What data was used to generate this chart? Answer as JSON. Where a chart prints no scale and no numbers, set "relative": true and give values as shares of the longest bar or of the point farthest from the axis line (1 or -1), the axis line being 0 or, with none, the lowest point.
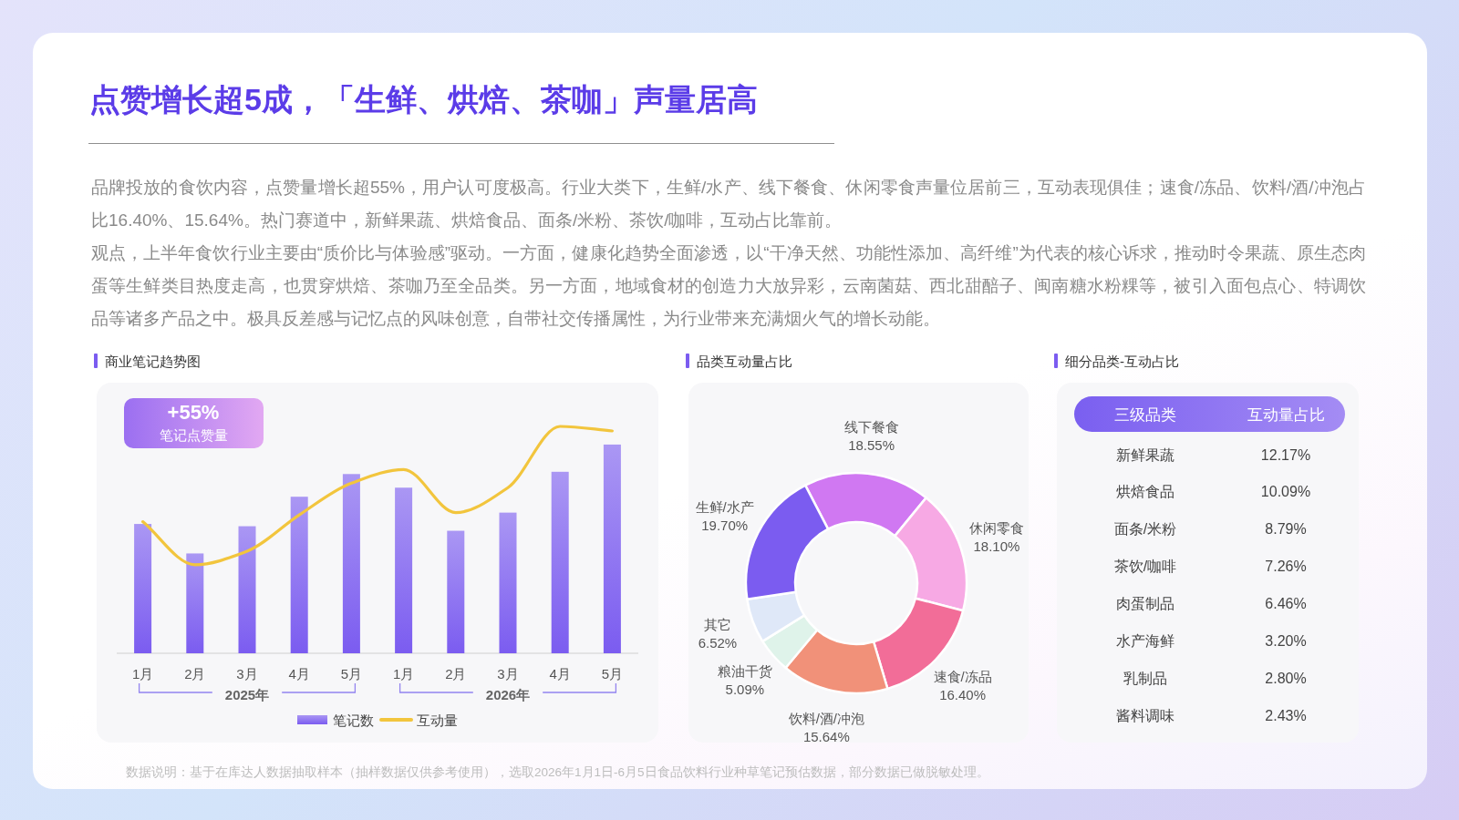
{
  "chart_data": [
    {
      "type": "other",
      "title": "点赞增长超5成，「生鲜、烘焙、茶咖」声量居高",
      "annotations": [
        "品牌投放的食饮内容，点赞量增长超55%，用户认可度极高。行业大类下，生鲜/水产、线下餐食、休闲零食声量位居前三，互动表现俱佳；速食/冻品、饮料/酒/冲泡占比16.40%、15.64%。热门赛道中，新鲜果蔬、烘焙食品、面条/米粉、茶饮/咖啡，互动占比靠前。",
        "观点，上半年食饮行业主要由“质价比与体验感”驱动。一方面，健康化趋势全面渗透，以“干净天然、功能性添加、高纤维”为代表的核心诉求，推动时令果蔬、原生态肉蛋等生鲜类目热度走高，也贯穿烘焙、茶咖乃至全品类。另一方面，地域食材的创造力大放异彩，云南菌菇、西北甜醅子、闽南糖水粉粿等，被引入面包点心、特调饮品等诸多产品之中。极具反差感与记忆点的风味创意，自带社交传播属性，为行业带来充满烟火气的增长动能。",
        "数据说明：基于在库达人数据抽取样本（抽样数据仅供参考使用），选取2026年1月1日-6月5日食品饮料行业种草笔记预估数据，部分数据已做脱敏处理。"
      ]
    },
    {
      "type": "bar",
      "title": "商业笔记趋势图",
      "relative": true,
      "categories": [
        "1月",
        "2月",
        "3月",
        "4月",
        "5月",
        "1月",
        "2月",
        "3月",
        "4月",
        "5月"
      ],
      "series": [
        {
          "name": "笔记数",
          "type": "bar",
          "color": "#7b5cf0",
          "values": [
            0.57,
            0.44,
            0.56,
            0.69,
            0.79,
            0.73,
            0.54,
            0.62,
            0.8,
            0.92
          ]
        },
        {
          "name": "互动量",
          "type": "line",
          "color": "#f2c53d",
          "values": [
            0.58,
            0.39,
            0.45,
            0.61,
            0.75,
            0.81,
            0.62,
            0.73,
            1.0,
            0.98
          ]
        }
      ],
      "annotations": [
        "+55%",
        "笔记点赞量",
        "2025年",
        "2026年"
      ],
      "legend": "bottom"
    },
    {
      "type": "donut",
      "title": "品类互动量占比",
      "categories": [
        "线下餐食",
        "休闲零食",
        "速食/冻品",
        "饮料/酒/冲泡",
        "粮油干货",
        "其它",
        "生鲜/水产"
      ],
      "values": [
        18.55,
        18.1,
        16.4,
        15.64,
        5.09,
        6.52,
        19.7
      ],
      "value_labels": [
        "18.55%",
        "18.10%",
        "16.40%",
        "15.64%",
        "5.09%",
        "6.52%",
        "19.70%"
      ],
      "colors": [
        "#d078f2",
        "#f7a9e4",
        "#f26d98",
        "#f19179",
        "#dff3ea",
        "#dfe8f8",
        "#7b5cf0"
      ]
    },
    {
      "type": "other",
      "title": "细分品类-互动占比",
      "xlabel": "三级品类",
      "ylabel": "互动量占比",
      "categories": [
        "新鲜果蔬",
        "烘焙食品",
        "面条/米粉",
        "茶饮/咖啡",
        "肉蛋制品",
        "水产海鲜",
        "乳制品",
        "酱料调味"
      ],
      "value_labels": [
        "12.17%",
        "10.09%",
        "8.79%",
        "7.26%",
        "6.46%",
        "3.20%",
        "2.80%",
        "2.43%"
      ]
    }
  ]
}
